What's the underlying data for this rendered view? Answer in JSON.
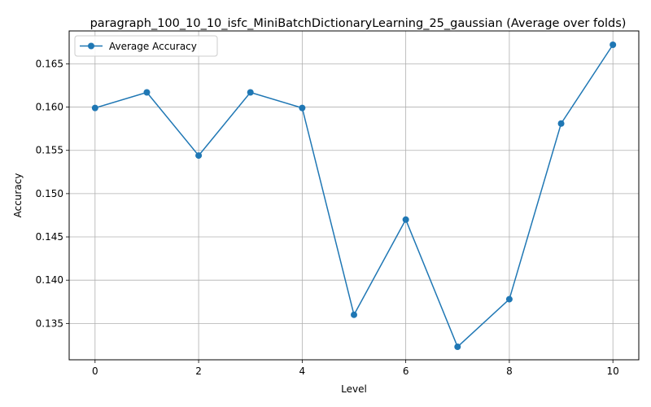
{
  "chart_data": {
    "type": "line",
    "title": "paragraph_100_10_10_isfc_MiniBatchDictionaryLearning_25_gaussian (Average over folds)",
    "xlabel": "Level",
    "ylabel": "Accuracy",
    "xlim": [
      -0.5,
      10.5
    ],
    "ylim": [
      0.1308,
      0.1688
    ],
    "xticks": [
      0,
      2,
      4,
      6,
      8,
      10
    ],
    "xtick_labels": [
      "0",
      "2",
      "4",
      "6",
      "8",
      "10"
    ],
    "yticks": [
      0.135,
      0.14,
      0.145,
      0.15,
      0.155,
      0.16,
      0.165
    ],
    "ytick_labels": [
      "0.135",
      "0.140",
      "0.145",
      "0.150",
      "0.155",
      "0.160",
      "0.165"
    ],
    "grid": true,
    "legend_position": "upper-left",
    "series": [
      {
        "name": "Average Accuracy",
        "color": "#1f77b4",
        "marker": "circle",
        "x": [
          0,
          1,
          2,
          3,
          4,
          5,
          6,
          7,
          8,
          9,
          10
        ],
        "y": [
          0.1599,
          0.1617,
          0.1544,
          0.1617,
          0.1599,
          0.136,
          0.147,
          0.1323,
          0.1378,
          0.1581,
          0.1672
        ]
      }
    ]
  }
}
